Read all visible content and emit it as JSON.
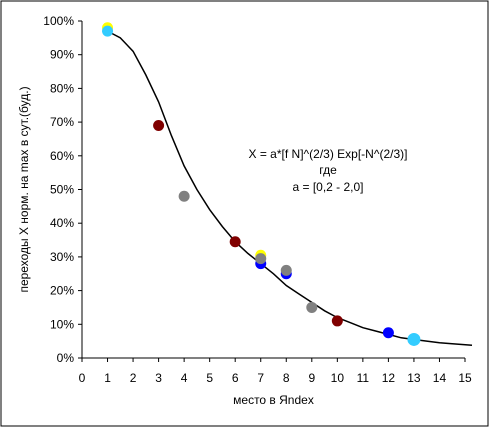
{
  "chart_data": {
    "type": "scatter",
    "title": "",
    "xlabel": "место в Яndex",
    "ylabel": "переходы X норм. на max в сут.(буд.)",
    "xlim": [
      0,
      15
    ],
    "ylim": [
      0,
      1.0
    ],
    "x_ticks": [
      "0",
      "1",
      "2",
      "3",
      "4",
      "5",
      "6",
      "7",
      "8",
      "9",
      "10",
      "11",
      "12",
      "13",
      "14",
      "15"
    ],
    "y_ticks": [
      "0%",
      "10%",
      "20%",
      "30%",
      "40%",
      "50%",
      "60%",
      "70%",
      "80%",
      "90%",
      "100%"
    ],
    "grid": false,
    "legend": "none",
    "annotation": [
      "X = a*[f N]^(2/3) Exp[-N^(2/3)]",
      "где",
      "a = [0,2 - 2,0]"
    ],
    "points": [
      {
        "x": 1,
        "y": 0.98,
        "color": "#ffff00"
      },
      {
        "x": 1,
        "y": 0.97,
        "color": "#33ccff"
      },
      {
        "x": 3,
        "y": 0.69,
        "color": "#800000"
      },
      {
        "x": 4,
        "y": 0.48,
        "color": "#808080"
      },
      {
        "x": 6,
        "y": 0.345,
        "color": "#800000"
      },
      {
        "x": 7,
        "y": 0.305,
        "color": "#ffff00"
      },
      {
        "x": 7,
        "y": 0.28,
        "color": "#0000ff"
      },
      {
        "x": 7,
        "y": 0.295,
        "color": "#808080"
      },
      {
        "x": 8,
        "y": 0.25,
        "color": "#0000ff"
      },
      {
        "x": 8,
        "y": 0.26,
        "color": "#808080"
      },
      {
        "x": 9,
        "y": 0.15,
        "color": "#808080"
      },
      {
        "x": 10,
        "y": 0.11,
        "color": "#800000"
      },
      {
        "x": 12,
        "y": 0.075,
        "color": "#0000ff"
      },
      {
        "x": 13,
        "y": 0.055,
        "color": "#33ccff"
      }
    ],
    "curve": {
      "x": [
        1,
        1.5,
        2,
        2.5,
        3,
        3.5,
        4,
        4.5,
        5,
        5.5,
        6,
        6.5,
        7,
        7.5,
        8,
        8.5,
        9,
        9.5,
        10,
        10.5,
        11,
        11.5,
        12,
        12.5,
        13,
        13.5,
        14,
        14.5,
        15.5
      ],
      "y": [
        0.97,
        0.95,
        0.91,
        0.84,
        0.76,
        0.66,
        0.57,
        0.5,
        0.44,
        0.39,
        0.345,
        0.31,
        0.28,
        0.25,
        0.215,
        0.19,
        0.165,
        0.14,
        0.12,
        0.105,
        0.09,
        0.08,
        0.07,
        0.06,
        0.055,
        0.05,
        0.045,
        0.042,
        0.038
      ],
      "color": "#000000"
    }
  }
}
